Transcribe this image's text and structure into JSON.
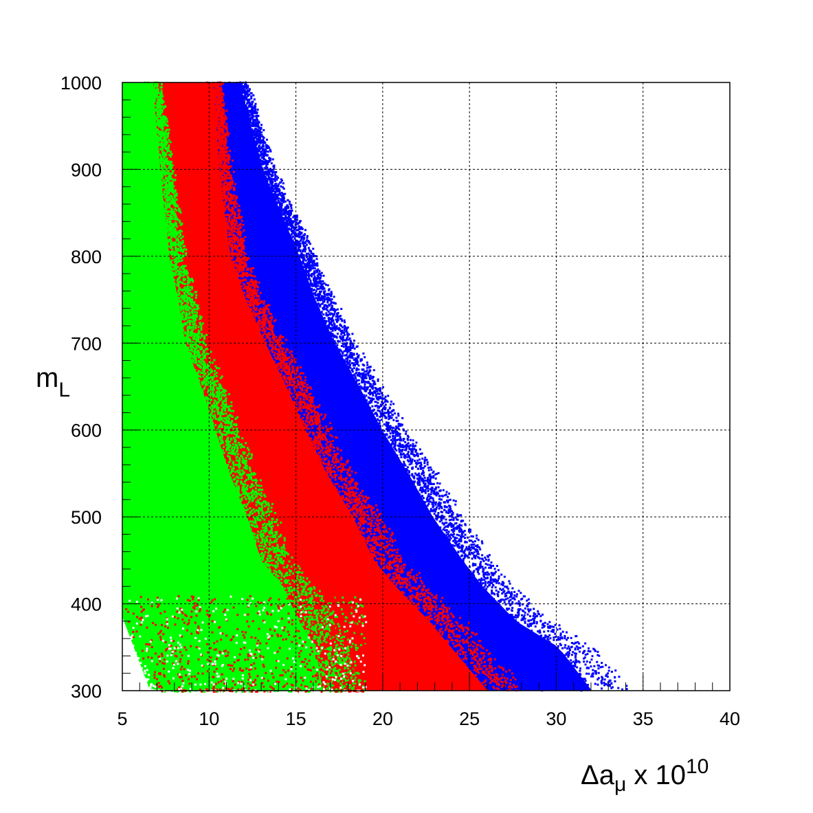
{
  "chart_data": {
    "type": "scatter",
    "title": "",
    "xlabel": {
      "main": "Δa",
      "sub": "μ",
      "suffix": " x 10",
      "sup": "10"
    },
    "ylabel": {
      "main": "m",
      "sub": "L"
    },
    "xlim": [
      5,
      40
    ],
    "ylim": [
      300,
      1000
    ],
    "xticks": [
      5,
      10,
      15,
      20,
      25,
      30,
      35,
      40
    ],
    "yticks": [
      300,
      400,
      500,
      600,
      700,
      800,
      900,
      1000
    ],
    "grid": true,
    "series": [
      {
        "color": "#0000ff",
        "boundary": [
          [
            12.0,
            1000
          ],
          [
            13.5,
            900
          ],
          [
            15.8,
            800
          ],
          [
            16.8,
            750
          ],
          [
            18.0,
            700
          ],
          [
            19.5,
            650
          ],
          [
            20.9,
            600
          ],
          [
            22.5,
            550
          ],
          [
            24.0,
            500
          ],
          [
            25.8,
            450
          ],
          [
            27.0,
            420
          ],
          [
            29.0,
            380
          ],
          [
            31.5,
            350
          ],
          [
            33.5,
            300
          ]
        ],
        "max_x_label": 33.5
      },
      {
        "color": "#ff0000",
        "boundary": [
          [
            10.5,
            1000
          ],
          [
            11.0,
            900
          ],
          [
            11.8,
            800
          ],
          [
            12.8,
            750
          ],
          [
            14.0,
            700
          ],
          [
            15.3,
            650
          ],
          [
            16.5,
            600
          ],
          [
            17.8,
            550
          ],
          [
            19.4,
            500
          ],
          [
            20.7,
            450
          ],
          [
            22.0,
            420
          ],
          [
            24.0,
            380
          ],
          [
            25.3,
            350
          ],
          [
            27.5,
            300
          ]
        ]
      },
      {
        "color": "#00ff00",
        "boundary": [
          [
            7.0,
            1000
          ],
          [
            7.6,
            900
          ],
          [
            8.3,
            800
          ],
          [
            8.9,
            750
          ],
          [
            9.4,
            700
          ],
          [
            10.4,
            650
          ],
          [
            11.3,
            600
          ],
          [
            12.2,
            550
          ],
          [
            13.3,
            500
          ],
          [
            14.2,
            450
          ],
          [
            15.5,
            420
          ],
          [
            16.5,
            380
          ],
          [
            17.5,
            350
          ],
          [
            18.0,
            300
          ]
        ]
      }
    ]
  }
}
